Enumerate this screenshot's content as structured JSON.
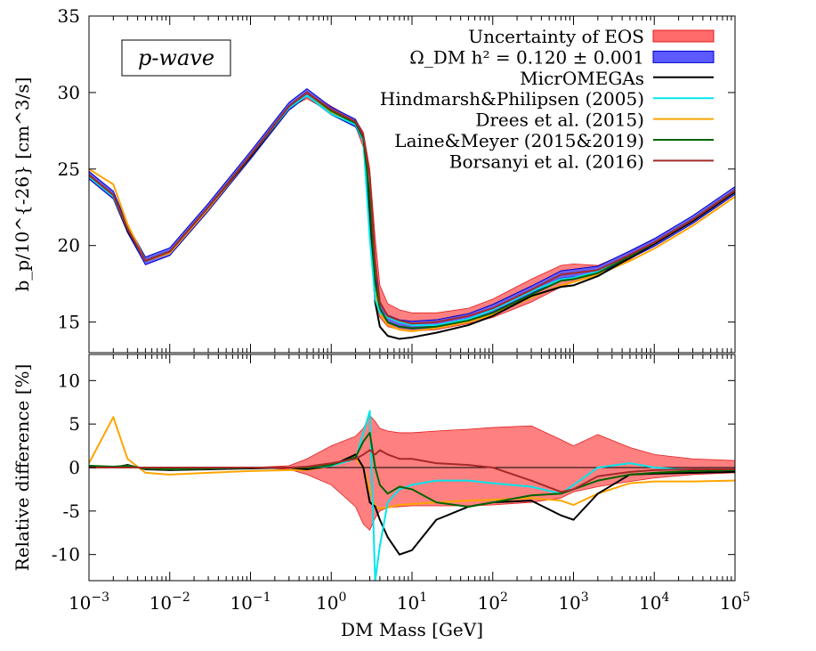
{
  "chart_data": [
    {
      "type": "line",
      "panel": "top",
      "ylabel": "b_p/10^{-26} [cm^3/s]",
      "xscale": "log",
      "xlim": [
        0.001,
        100000
      ],
      "ylim": [
        13,
        35
      ],
      "yticks": [
        15,
        20,
        25,
        30,
        35
      ],
      "annotation": "p-wave",
      "legend": {
        "placement": "top-right",
        "entries": [
          {
            "label": "Uncertainty of EOS",
            "color": "#ff6a6a",
            "kind": "band"
          },
          {
            "label": "Ω_DM h² = 0.120 ± 0.001",
            "color": "#5a5aff",
            "kind": "band"
          },
          {
            "label": "MicrOMEGAs",
            "color": "#000000",
            "kind": "line"
          },
          {
            "label": "Hindmarsh&Philipsen (2005)",
            "color": "#00e5ee",
            "kind": "line"
          },
          {
            "label": "Drees et al. (2015)",
            "color": "#ffa500",
            "kind": "line"
          },
          {
            "label": "Laine&Meyer (2015&2019)",
            "color": "#006400",
            "kind": "line"
          },
          {
            "label": "Borsanyi et al. (2016)",
            "color": "#a52a2a",
            "kind": "line"
          }
        ]
      },
      "x": [
        0.001,
        0.002,
        0.003,
        0.005,
        0.01,
        0.03,
        0.1,
        0.3,
        0.5,
        1,
        2,
        2.5,
        3,
        3.5,
        4,
        5,
        7,
        10,
        20,
        50,
        100,
        300,
        700,
        1000,
        2000,
        5000,
        10000,
        30000,
        100000
      ],
      "series": [
        {
          "name": "Uncertainty of EOS (upper)",
          "values": [
            24.8,
            23.4,
            21.2,
            19.1,
            19.7,
            22.6,
            26.0,
            29.2,
            30.1,
            29.1,
            28.2,
            27.4,
            25.0,
            20.5,
            17.4,
            16.2,
            15.8,
            15.6,
            15.6,
            15.9,
            16.5,
            17.8,
            18.7,
            18.8,
            18.7,
            19.6,
            20.4,
            21.8,
            23.7
          ]
        },
        {
          "name": "Uncertainty of EOS (lower)",
          "values": [
            24.5,
            23.2,
            21.1,
            19.0,
            19.6,
            22.5,
            25.9,
            29.0,
            29.6,
            28.7,
            27.8,
            26.4,
            20.5,
            16.2,
            15.3,
            14.7,
            14.5,
            14.4,
            14.5,
            14.9,
            15.3,
            16.3,
            17.3,
            17.6,
            18.1,
            19.1,
            20.1,
            21.6,
            23.5
          ]
        },
        {
          "name": "Ω_DM h² = 0.120 ± 0.001",
          "values": [
            24.6,
            23.3,
            21.1,
            19.0,
            19.6,
            22.5,
            25.9,
            29.1,
            30.0,
            28.8,
            28.0,
            27.0,
            23.0,
            17.8,
            16.0,
            15.2,
            14.9,
            14.8,
            14.9,
            15.3,
            15.9,
            17.1,
            18.1,
            18.2,
            18.4,
            19.4,
            20.2,
            21.7,
            23.6
          ]
        },
        {
          "name": "MicrOMEGAs",
          "values": [
            24.5,
            23.2,
            21.0,
            19.0,
            19.6,
            22.5,
            25.8,
            29.0,
            29.8,
            28.6,
            27.9,
            26.9,
            21.8,
            16.3,
            14.7,
            14.1,
            13.9,
            14.0,
            14.3,
            14.8,
            15.4,
            16.7,
            17.3,
            17.4,
            18.0,
            19.2,
            20.1,
            21.6,
            23.5
          ]
        },
        {
          "name": "Hindmarsh&Philipsen (2005)",
          "values": [
            24.5,
            23.2,
            21.1,
            19.0,
            19.6,
            22.5,
            25.9,
            29.0,
            29.8,
            28.6,
            27.9,
            26.8,
            20.5,
            16.5,
            15.6,
            15.3,
            15.0,
            14.8,
            14.8,
            15.2,
            15.8,
            17.0,
            17.8,
            17.9,
            18.3,
            19.3,
            20.2,
            21.7,
            23.6
          ]
        },
        {
          "name": "Drees et al. (2015)",
          "values": [
            25.0,
            24.0,
            21.4,
            19.0,
            19.5,
            22.4,
            25.8,
            29.0,
            29.8,
            28.7,
            28.0,
            27.1,
            22.5,
            17.3,
            15.6,
            14.8,
            14.5,
            14.4,
            14.6,
            15.0,
            15.5,
            16.6,
            17.4,
            17.6,
            18.1,
            19.0,
            19.8,
            21.3,
            23.2
          ]
        },
        {
          "name": "Laine&Meyer (2015&2019)",
          "values": [
            24.6,
            23.3,
            21.1,
            19.0,
            19.6,
            22.5,
            25.9,
            29.1,
            30.0,
            28.8,
            28.0,
            27.0,
            23.2,
            17.6,
            15.9,
            15.0,
            14.7,
            14.6,
            14.7,
            15.1,
            15.6,
            16.8,
            17.7,
            17.8,
            18.2,
            19.3,
            20.2,
            21.7,
            23.6
          ]
        },
        {
          "name": "Borsanyi et al. (2016)",
          "values": [
            24.6,
            23.3,
            21.1,
            19.0,
            19.6,
            22.5,
            25.9,
            29.1,
            30.0,
            28.9,
            28.1,
            27.2,
            24.5,
            19.0,
            16.3,
            15.4,
            15.1,
            14.9,
            15.0,
            15.4,
            15.9,
            17.1,
            18.1,
            18.2,
            18.4,
            19.4,
            20.2,
            21.7,
            23.6
          ]
        }
      ]
    },
    {
      "type": "line",
      "panel": "bottom",
      "xlabel": "DM Mass [GeV]",
      "ylabel": "Relative difference [%]",
      "xscale": "log",
      "xlim": [
        0.001,
        100000
      ],
      "ylim": [
        -13,
        13
      ],
      "yticks": [
        -10,
        -5,
        0,
        5,
        10
      ],
      "xticks": [
        "10^-3",
        "10^-2",
        "10^-1",
        "10^0",
        "10^1",
        "10^2",
        "10^3",
        "10^4",
        "10^5"
      ],
      "x": [
        0.001,
        0.002,
        0.003,
        0.005,
        0.01,
        0.03,
        0.1,
        0.3,
        0.5,
        1,
        2,
        2.5,
        3,
        3.5,
        4,
        5,
        7,
        10,
        20,
        50,
        100,
        300,
        700,
        1000,
        2000,
        5000,
        10000,
        30000,
        100000
      ],
      "series": [
        {
          "name": "Uncertainty of EOS (upper)",
          "values": [
            0.0,
            0.0,
            0.0,
            0.0,
            0.0,
            0.0,
            0.0,
            0.2,
            1.0,
            2.5,
            3.6,
            4.5,
            6.0,
            5.3,
            4.5,
            4.2,
            4.0,
            4.0,
            4.2,
            4.4,
            4.6,
            4.8,
            3.2,
            2.5,
            3.8,
            2.3,
            1.5,
            1.0,
            0.8
          ]
        },
        {
          "name": "Uncertainty of EOS (lower)",
          "values": [
            0.0,
            0.0,
            0.0,
            0.0,
            0.0,
            0.0,
            0.0,
            -0.2,
            -0.8,
            -2.0,
            -4.5,
            -6.5,
            -7.2,
            -5.8,
            -5.0,
            -4.6,
            -4.5,
            -4.4,
            -4.4,
            -4.4,
            -4.3,
            -4.0,
            -3.5,
            -2.8,
            -2.2,
            -1.6,
            -1.2,
            -0.8,
            -0.6
          ]
        },
        {
          "name": "MicrOMEGAs",
          "values": [
            0.2,
            0.0,
            0.3,
            -0.2,
            -0.3,
            -0.2,
            -0.1,
            0.0,
            -0.2,
            0.2,
            1.5,
            0.0,
            -4.0,
            -4.5,
            -6.0,
            -8.0,
            -10.0,
            -9.5,
            -6.0,
            -4.5,
            -4.0,
            -3.8,
            -5.5,
            -6.0,
            -3.0,
            -0.8,
            -0.7,
            -0.6,
            -0.5
          ]
        },
        {
          "name": "Hindmarsh&Philipsen (2005)",
          "values": [
            0.1,
            0.0,
            0.2,
            -0.1,
            -0.2,
            -0.1,
            0.0,
            0.0,
            0.0,
            0.2,
            1.0,
            4.0,
            6.5,
            -13.0,
            -9.0,
            -4.0,
            -2.5,
            -2.0,
            -1.5,
            -1.5,
            -1.8,
            -2.2,
            -3.0,
            -2.0,
            0.0,
            0.5,
            0.0,
            -0.3,
            -0.2
          ]
        },
        {
          "name": "Drees et al. (2015)",
          "values": [
            0.5,
            5.8,
            1.0,
            -0.6,
            -0.8,
            -0.6,
            -0.4,
            -0.3,
            -0.3,
            0.2,
            1.0,
            0.0,
            -2.5,
            -4.5,
            -4.7,
            -4.6,
            -4.3,
            -4.2,
            -4.0,
            -3.8,
            -3.7,
            -3.5,
            -3.8,
            -4.3,
            -3.0,
            -1.8,
            -1.6,
            -1.6,
            -1.5
          ]
        },
        {
          "name": "Laine&Meyer (2015&2019)",
          "values": [
            0.2,
            0.1,
            0.2,
            -0.1,
            -0.2,
            -0.1,
            0.0,
            0.0,
            0.0,
            0.3,
            1.2,
            3.0,
            4.0,
            0.0,
            -2.0,
            -3.0,
            -2.2,
            -2.5,
            -4.0,
            -4.5,
            -4.0,
            -3.2,
            -3.0,
            -2.5,
            -1.5,
            -0.8,
            -0.6,
            -0.4,
            -0.3
          ]
        },
        {
          "name": "Borsanyi et al. (2016)",
          "values": [
            0.0,
            0.0,
            0.0,
            0.0,
            0.0,
            0.0,
            0.0,
            0.0,
            0.1,
            0.5,
            1.0,
            1.5,
            2.0,
            1.5,
            2.0,
            1.5,
            1.0,
            1.0,
            0.5,
            0.3,
            0.0,
            -1.5,
            -2.8,
            -2.5,
            -1.0,
            -0.5,
            -0.3,
            -0.2,
            -0.2
          ]
        }
      ]
    }
  ]
}
